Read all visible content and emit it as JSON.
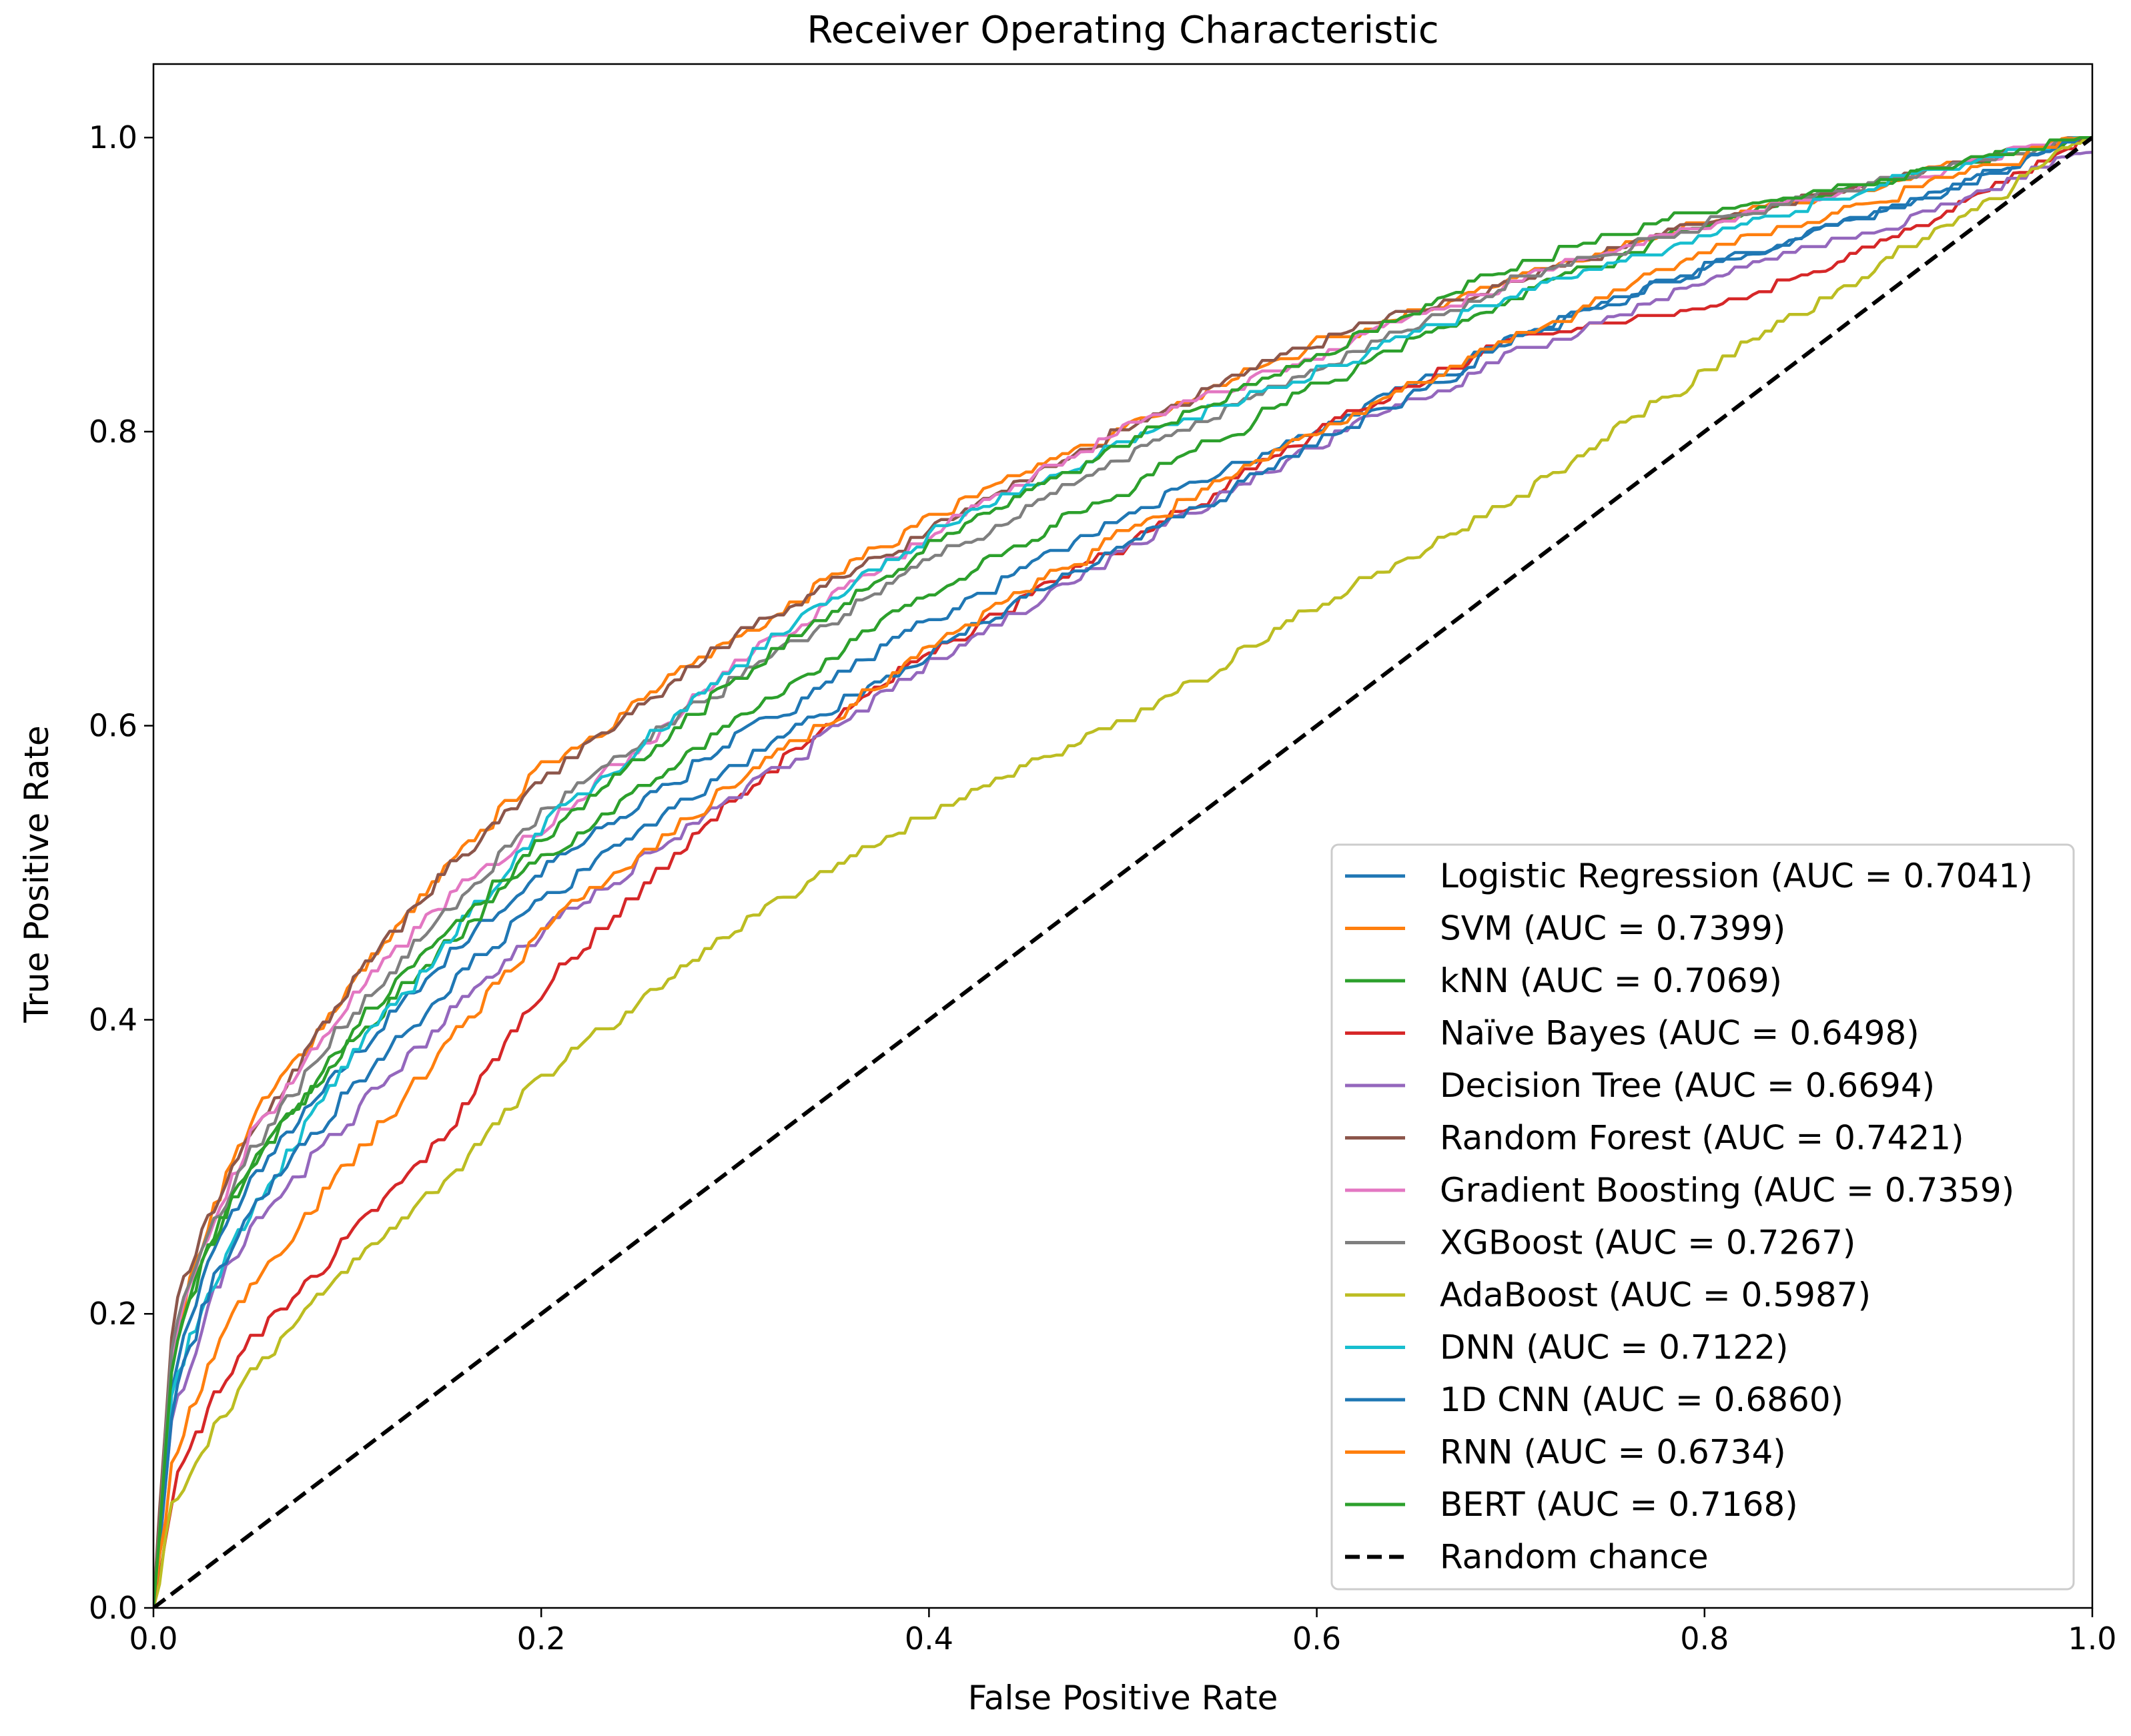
{
  "chart_data": {
    "type": "line",
    "title": "Receiver Operating Characteristic",
    "xlabel": "False Positive Rate",
    "ylabel": "True Positive Rate",
    "xlim": [
      0.0,
      1.0
    ],
    "ylim": [
      0.0,
      1.05
    ],
    "xticks": [
      "0.0",
      "0.2",
      "0.4",
      "0.6",
      "0.8",
      "1.0"
    ],
    "yticks": [
      "0.0",
      "0.2",
      "0.4",
      "0.6",
      "0.8",
      "1.0"
    ],
    "grid": false,
    "legend_position": "bottom-right",
    "series": [
      {
        "name": "Logistic Regression (AUC = 0.7041)",
        "color": "#1f77b4",
        "dash": "solid",
        "x": [
          0,
          0.01,
          0.03,
          0.05,
          0.1,
          0.15,
          0.2,
          0.3,
          0.4,
          0.5,
          0.6,
          0.7,
          0.8,
          0.9,
          1.0
        ],
        "y": [
          0,
          0.16,
          0.24,
          0.29,
          0.37,
          0.44,
          0.5,
          0.59,
          0.67,
          0.74,
          0.8,
          0.86,
          0.91,
          0.95,
          1.0
        ]
      },
      {
        "name": "SVM (AUC = 0.7399)",
        "color": "#ff7f0e",
        "dash": "solid",
        "x": [
          0,
          0.01,
          0.03,
          0.05,
          0.1,
          0.15,
          0.2,
          0.3,
          0.4,
          0.5,
          0.6,
          0.7,
          0.8,
          0.9,
          1.0
        ],
        "y": [
          0,
          0.18,
          0.27,
          0.33,
          0.42,
          0.5,
          0.57,
          0.66,
          0.74,
          0.8,
          0.86,
          0.9,
          0.94,
          0.97,
          1.0
        ]
      },
      {
        "name": "kNN (AUC = 0.7069)",
        "color": "#2ca02c",
        "dash": "solid",
        "x": [
          0,
          0.01,
          0.03,
          0.05,
          0.1,
          0.15,
          0.2,
          0.3,
          0.4,
          0.5,
          0.6,
          0.7,
          0.8,
          0.9,
          1.0
        ],
        "y": [
          0,
          0.18,
          0.25,
          0.3,
          0.38,
          0.45,
          0.51,
          0.6,
          0.69,
          0.76,
          0.83,
          0.89,
          0.94,
          0.97,
          1.0
        ]
      },
      {
        "name": "Naïve Bayes (AUC = 0.6498)",
        "color": "#d62728",
        "dash": "solid",
        "x": [
          0,
          0.01,
          0.03,
          0.05,
          0.1,
          0.15,
          0.2,
          0.3,
          0.4,
          0.5,
          0.6,
          0.7,
          0.8,
          0.9,
          1.0
        ],
        "y": [
          0,
          0.08,
          0.14,
          0.18,
          0.25,
          0.32,
          0.42,
          0.55,
          0.65,
          0.72,
          0.8,
          0.86,
          0.88,
          0.93,
          1.0
        ]
      },
      {
        "name": "Decision Tree (AUC = 0.6694)",
        "color": "#9467bd",
        "dash": "solid",
        "x": [
          0,
          0.01,
          0.03,
          0.05,
          0.1,
          0.15,
          0.2,
          0.3,
          0.4,
          0.5,
          0.6,
          0.7,
          0.8,
          0.9,
          1.0
        ],
        "y": [
          0,
          0.13,
          0.21,
          0.26,
          0.33,
          0.4,
          0.46,
          0.55,
          0.64,
          0.72,
          0.79,
          0.85,
          0.9,
          0.94,
          0.99
        ]
      },
      {
        "name": "Random Forest (AUC = 0.7421)",
        "color": "#8c564b",
        "dash": "solid",
        "x": [
          0,
          0.01,
          0.03,
          0.05,
          0.1,
          0.15,
          0.2,
          0.3,
          0.4,
          0.5,
          0.6,
          0.7,
          0.8,
          0.9,
          1.0
        ],
        "y": [
          0,
          0.2,
          0.27,
          0.32,
          0.42,
          0.5,
          0.56,
          0.66,
          0.73,
          0.8,
          0.86,
          0.9,
          0.94,
          0.97,
          1.0
        ]
      },
      {
        "name": "Gradient Boosting (AUC = 0.7359)",
        "color": "#e377c2",
        "dash": "solid",
        "x": [
          0,
          0.01,
          0.03,
          0.05,
          0.1,
          0.15,
          0.2,
          0.3,
          0.4,
          0.5,
          0.6,
          0.7,
          0.8,
          0.9,
          1.0
        ],
        "y": [
          0,
          0.18,
          0.26,
          0.32,
          0.41,
          0.48,
          0.53,
          0.64,
          0.73,
          0.8,
          0.85,
          0.9,
          0.94,
          0.97,
          1.0
        ]
      },
      {
        "name": "XGBoost (AUC = 0.7267)",
        "color": "#7f7f7f",
        "dash": "solid",
        "x": [
          0,
          0.01,
          0.03,
          0.05,
          0.1,
          0.15,
          0.2,
          0.3,
          0.4,
          0.5,
          0.6,
          0.7,
          0.8,
          0.9,
          1.0
        ],
        "y": [
          0,
          0.19,
          0.26,
          0.31,
          0.4,
          0.47,
          0.54,
          0.63,
          0.71,
          0.78,
          0.84,
          0.9,
          0.94,
          0.97,
          1.0
        ]
      },
      {
        "name": "AdaBoost (AUC = 0.5987)",
        "color": "#bcbd22",
        "dash": "solid",
        "x": [
          0,
          0.01,
          0.03,
          0.05,
          0.1,
          0.15,
          0.2,
          0.3,
          0.4,
          0.5,
          0.6,
          0.7,
          0.8,
          0.9,
          1.0
        ],
        "y": [
          0,
          0.07,
          0.12,
          0.16,
          0.23,
          0.29,
          0.36,
          0.46,
          0.54,
          0.6,
          0.68,
          0.75,
          0.84,
          0.92,
          1.0
        ]
      },
      {
        "name": "DNN (AUC = 0.7122)",
        "color": "#17becf",
        "dash": "solid",
        "x": [
          0,
          0.01,
          0.03,
          0.05,
          0.1,
          0.15,
          0.2,
          0.3,
          0.4,
          0.5,
          0.6,
          0.7,
          0.8,
          0.9,
          1.0
        ],
        "y": [
          0,
          0.15,
          0.22,
          0.27,
          0.37,
          0.45,
          0.53,
          0.64,
          0.73,
          0.79,
          0.84,
          0.89,
          0.93,
          0.97,
          1.0
        ]
      },
      {
        "name": "1D CNN (AUC = 0.6860)",
        "color": "#1f77b4",
        "dash": "solid",
        "x": [
          0,
          0.01,
          0.03,
          0.05,
          0.1,
          0.15,
          0.2,
          0.3,
          0.4,
          0.5,
          0.6,
          0.7,
          0.8,
          0.9,
          1.0
        ],
        "y": [
          0,
          0.14,
          0.22,
          0.27,
          0.35,
          0.42,
          0.48,
          0.57,
          0.65,
          0.72,
          0.79,
          0.86,
          0.91,
          0.95,
          1.0
        ]
      },
      {
        "name": "RNN (AUC = 0.6734)",
        "color": "#ff7f0e",
        "dash": "solid",
        "x": [
          0,
          0.01,
          0.03,
          0.05,
          0.1,
          0.15,
          0.2,
          0.3,
          0.4,
          0.5,
          0.6,
          0.7,
          0.8,
          0.9,
          1.0
        ],
        "y": [
          0,
          0.1,
          0.17,
          0.22,
          0.3,
          0.38,
          0.46,
          0.56,
          0.65,
          0.73,
          0.8,
          0.86,
          0.92,
          0.96,
          1.0
        ]
      },
      {
        "name": "BERT (AUC = 0.7168)",
        "color": "#2ca02c",
        "dash": "solid",
        "x": [
          0,
          0.01,
          0.03,
          0.05,
          0.1,
          0.15,
          0.2,
          0.3,
          0.4,
          0.5,
          0.6,
          0.7,
          0.8,
          0.9,
          1.0
        ],
        "y": [
          0,
          0.17,
          0.25,
          0.3,
          0.39,
          0.46,
          0.52,
          0.63,
          0.72,
          0.79,
          0.85,
          0.91,
          0.95,
          0.97,
          1.0
        ]
      },
      {
        "name": "Random chance",
        "color": "#000000",
        "dash": "dashed",
        "x": [
          0,
          1.0
        ],
        "y": [
          0,
          1.0
        ]
      }
    ]
  }
}
